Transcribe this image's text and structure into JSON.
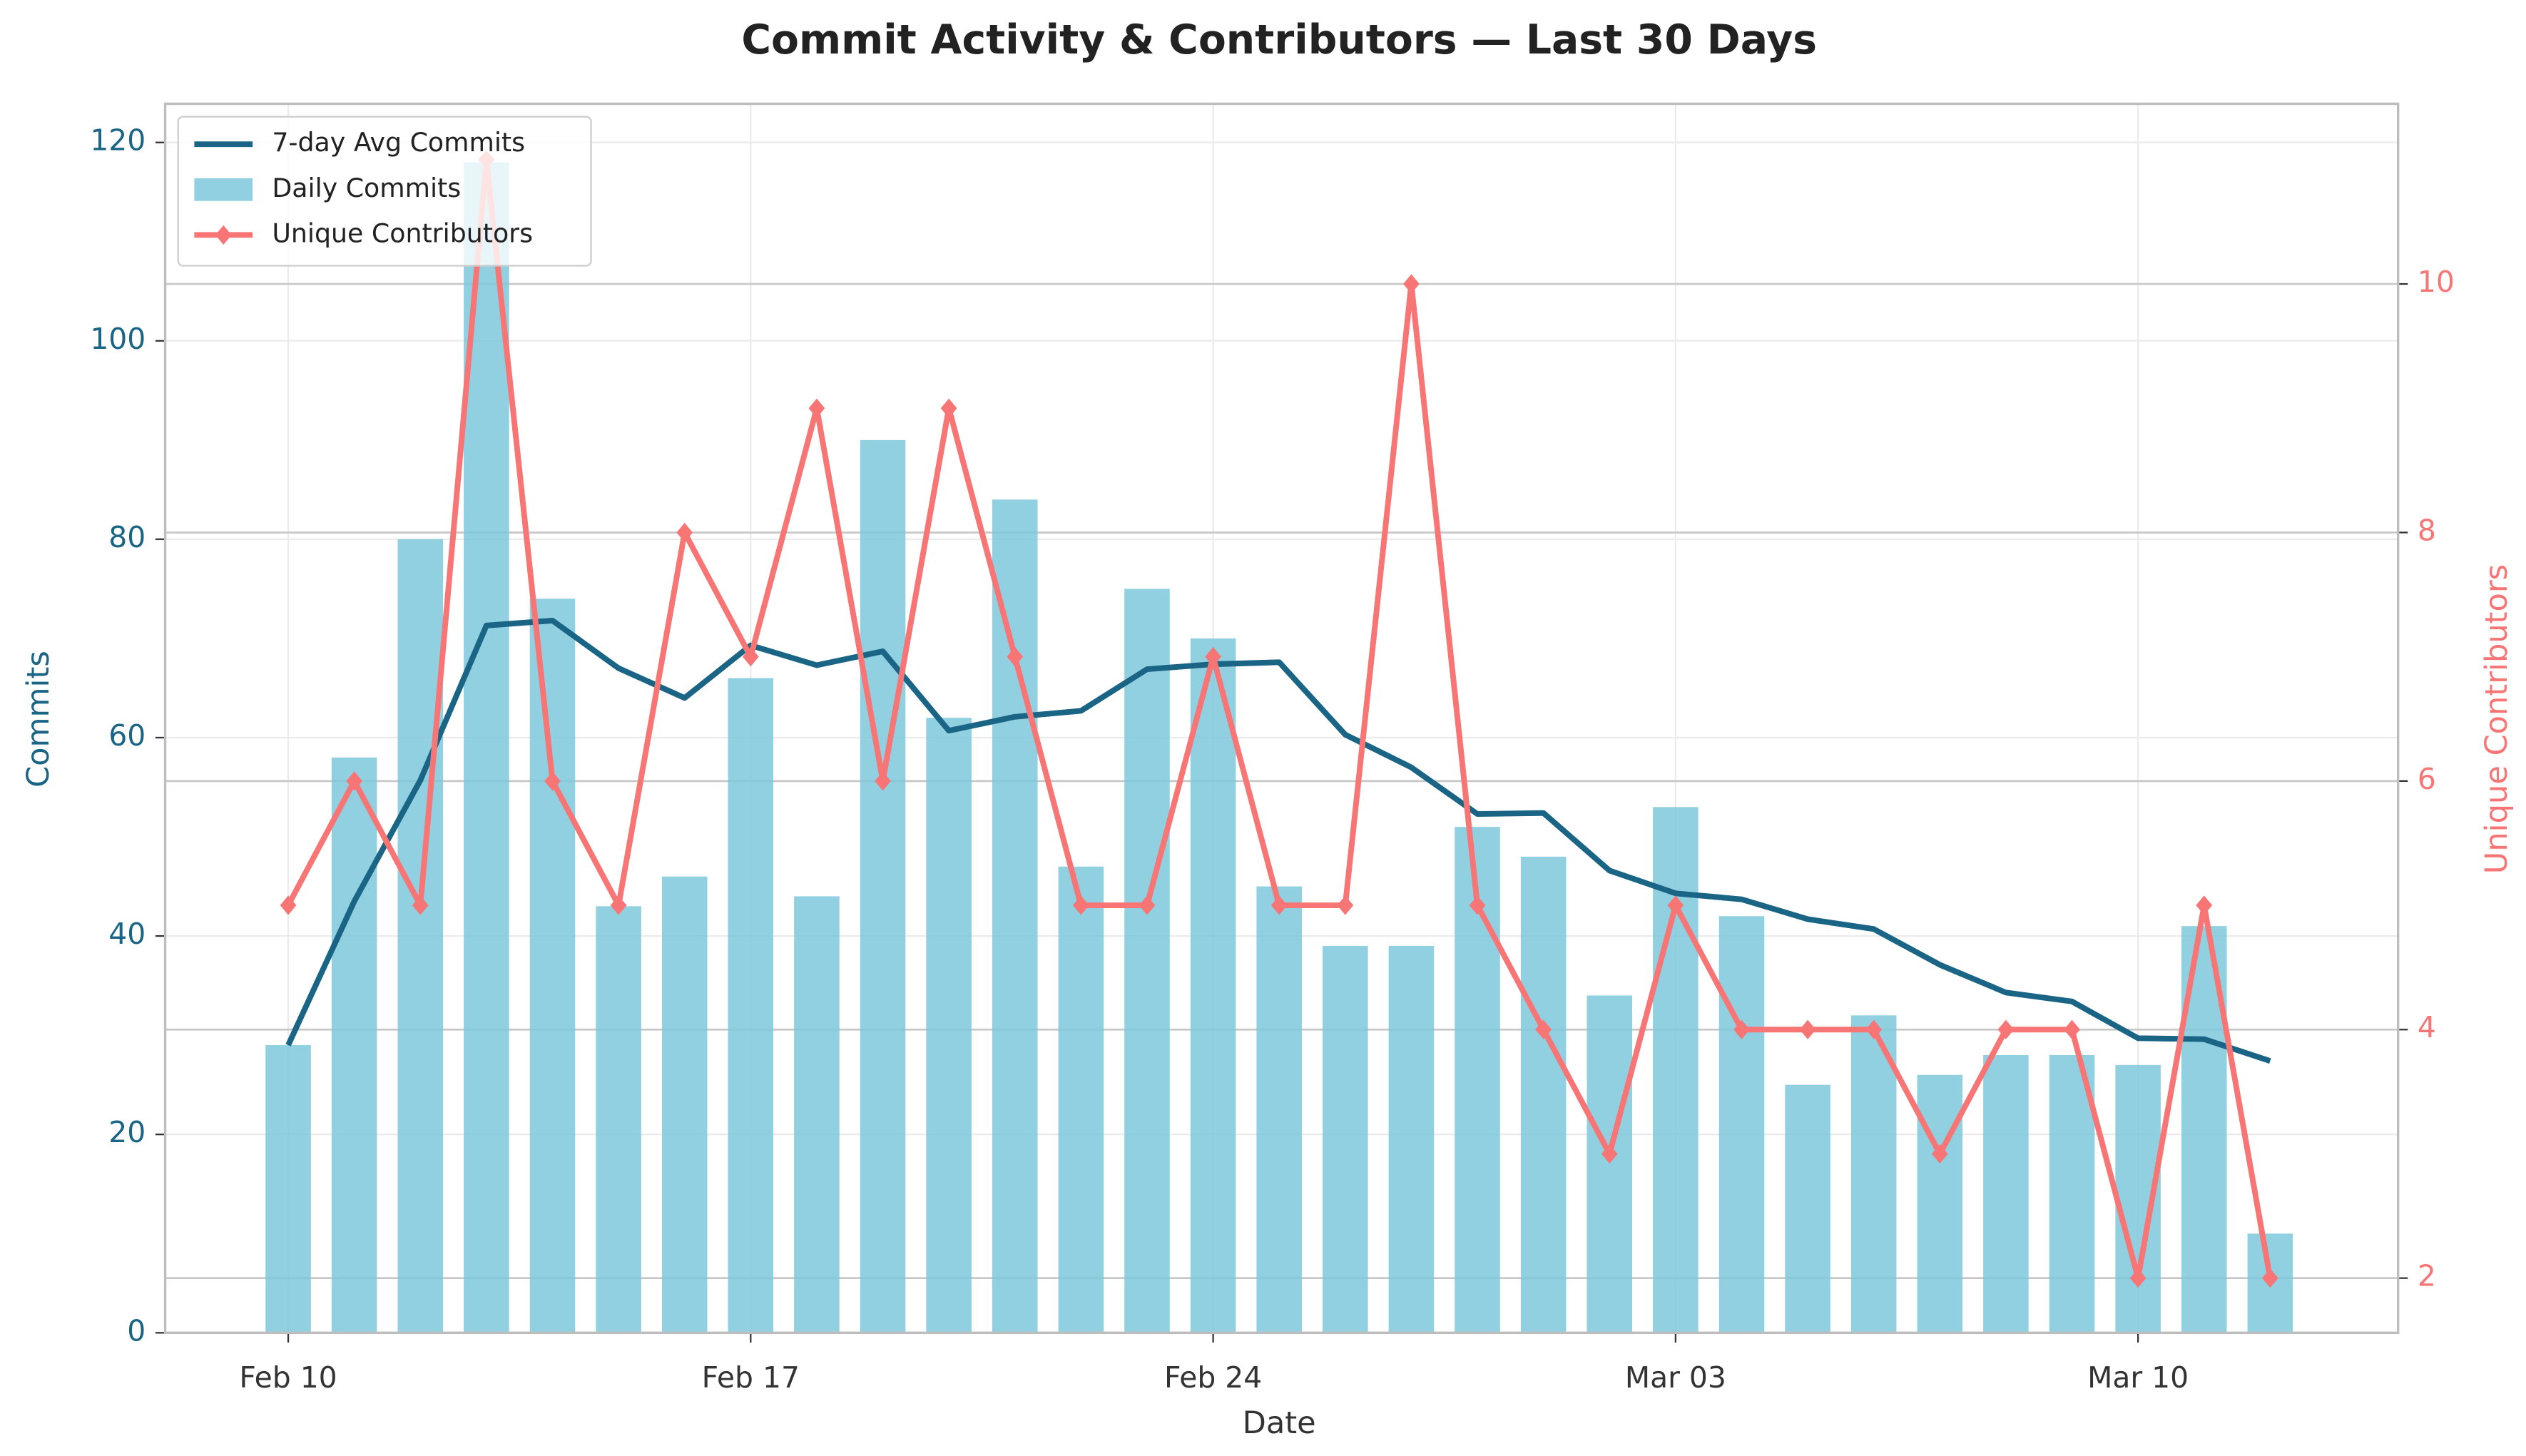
{
  "chart_data": {
    "type": "bar-line-combo",
    "title": "Commit Activity & Contributors — Last 30 Days",
    "xlabel": "Date",
    "ylabel": "Commits",
    "y2label": "Unique Contributors",
    "categories": [
      "Feb 10",
      null,
      null,
      null,
      null,
      null,
      null,
      "Feb 17",
      null,
      null,
      null,
      null,
      null,
      null,
      "Feb 24",
      null,
      null,
      null,
      null,
      null,
      null,
      "Mar 03",
      null,
      null,
      null,
      null,
      null,
      null,
      "Mar 10",
      null,
      null
    ],
    "ylim": [
      0,
      123.9
    ],
    "yticks": [
      0,
      20,
      40,
      60,
      80,
      100,
      120
    ],
    "y2lim": [
      1.56,
      11.45
    ],
    "y2ticks": [
      2,
      4,
      6,
      8,
      10
    ],
    "grid": true,
    "legend": "upper left",
    "series": [
      {
        "name": "7-day Avg Commits",
        "type": "line",
        "color": "#1a6585",
        "values": [
          29,
          43.5,
          55.7,
          71.3,
          71.8,
          67,
          64,
          69.3,
          67.3,
          68.7,
          60.7,
          62.1,
          62.7,
          66.9,
          67.4,
          67.6,
          60.3,
          57,
          52.3,
          52.4,
          46.6,
          44.3,
          43.7,
          41.7,
          40.7,
          37.1,
          34.3,
          33.4,
          29.7,
          29.6,
          27.4
        ]
      },
      {
        "name": "Daily Commits",
        "type": "bar",
        "color": "#7ec8dc",
        "values": [
          29,
          58,
          80,
          118,
          74,
          43,
          46,
          66,
          44,
          90,
          62,
          84,
          47,
          75,
          70,
          45,
          39,
          39,
          51,
          48,
          34,
          53,
          42,
          25,
          32,
          26,
          28,
          28,
          27,
          41,
          10
        ]
      },
      {
        "name": "Unique Contributors",
        "type": "line",
        "axis": "y2",
        "color": "#f87575",
        "values": [
          5,
          6,
          5,
          11,
          6,
          5,
          8,
          7,
          9,
          6,
          9,
          7,
          5,
          5,
          7,
          5,
          5,
          10,
          5,
          4,
          3,
          5,
          4,
          4,
          4,
          3,
          4,
          4,
          2,
          5,
          2
        ]
      }
    ]
  }
}
